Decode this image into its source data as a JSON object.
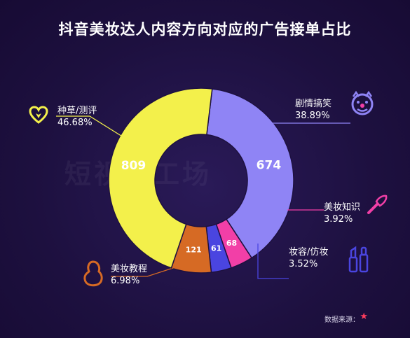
{
  "chart_data": {
    "type": "pie",
    "title": "抖音美妆达人内容方向对应的广告接单占比",
    "categories": [
      "种草/测评",
      "剧情搞笑",
      "美妆知识",
      "妆容/仿妆",
      "美妆教程"
    ],
    "values": [
      809,
      674,
      68,
      61,
      121
    ],
    "percent_labels": [
      "46.68%",
      "38.89%",
      "3.92%",
      "3.52%",
      "6.98%"
    ],
    "colors": [
      "#f3f04b",
      "#8f84f5",
      "#f23fa7",
      "#4a45e0",
      "#d66a24"
    ],
    "value_label_colors": [
      "#ffffff",
      "#ffffff",
      "#ffffff",
      "#ffffff",
      "#ffffff"
    ],
    "legend": "callouts"
  },
  "source_label": "数据来源：",
  "watermark": "短视频工场",
  "icons": [
    "heart-icon",
    "clown-face-icon",
    "makeup-brush-icon",
    "lipstick-icon",
    "sponge-icon"
  ]
}
